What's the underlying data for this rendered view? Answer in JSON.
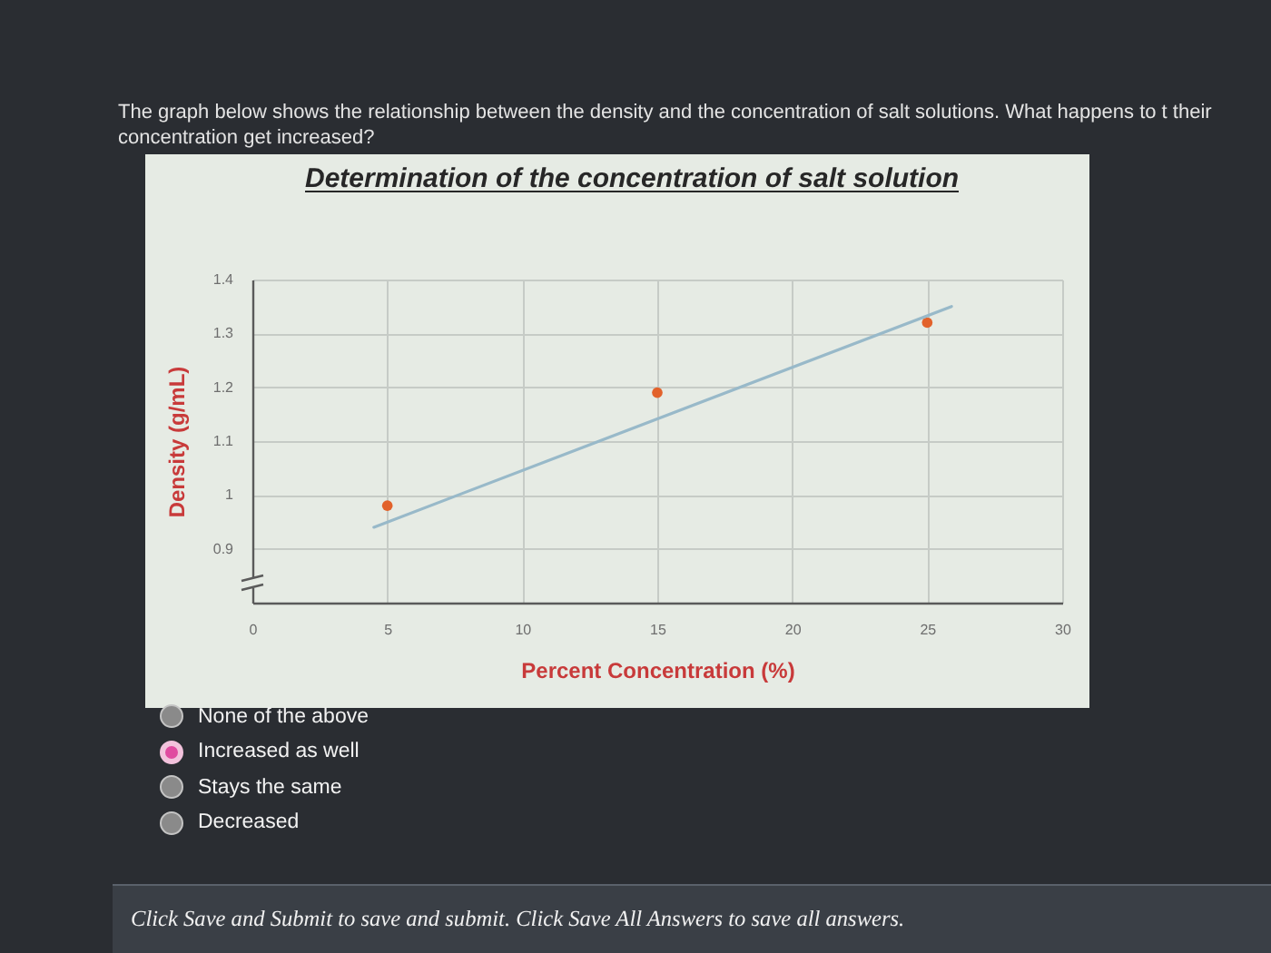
{
  "chart_data": {
    "type": "scatter",
    "title": "Determination of the concentration of salt solution",
    "xlabel": "Percent Concentration (%)",
    "ylabel": "Density (g/mL)",
    "series": [
      {
        "color": "#e2622b",
        "x": [
          5,
          15,
          25
        ],
        "values": [
          0.98,
          1.19,
          1.32
        ]
      },
      {
        "type": "line",
        "color": "#98b9c9",
        "x": [
          4.5,
          25.9
        ],
        "values": [
          0.94,
          1.35
        ]
      }
    ],
    "xlim": [
      0,
      30
    ],
    "xticks": [
      0,
      5,
      10,
      15,
      20,
      25,
      30
    ],
    "ylim": [
      0.8,
      1.4
    ],
    "yticks": [
      0.9,
      1,
      1.1,
      1.2,
      1.3,
      1.4
    ],
    "grid": true,
    "annotations": [
      "The graph below shows the relationship between the density and the concentration of salt solutions. What happens to t their concentration get increased?",
      "None of the above",
      "Increased as well",
      "Stays the same",
      "Decreased",
      "Click Save and Submit to save and submit. Click Save All Answers to save all answers."
    ]
  }
}
